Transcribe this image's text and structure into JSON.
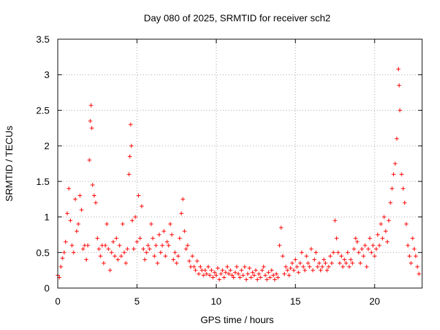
{
  "chart_data": {
    "type": "scatter",
    "title": "Day 080 of 2025, SRMTID for receiver sch2",
    "xlabel": "GPS time / hours",
    "ylabel": "SRMTID / TECUs",
    "xlim": [
      0,
      23
    ],
    "ylim": [
      0,
      3.5
    ],
    "x_ticks": [
      0,
      5,
      10,
      15,
      20
    ],
    "x_tick_labels": [
      "0",
      "5",
      "10",
      "15",
      "20"
    ],
    "y_ticks": [
      0,
      0.5,
      1,
      1.5,
      2,
      2.5,
      3,
      3.5
    ],
    "y_tick_labels": [
      "0",
      "0.5",
      "1",
      "1.5",
      "2",
      "2.5",
      "3",
      "3.5"
    ],
    "grid": true,
    "marker": "plus",
    "marker_color": "#ff0000",
    "series": [
      {
        "name": "SRMTID",
        "x": [
          0.0,
          0.1,
          0.2,
          0.3,
          0.4,
          0.5,
          0.6,
          0.7,
          0.8,
          0.9,
          1.0,
          1.1,
          1.2,
          1.3,
          1.4,
          1.5,
          1.6,
          1.7,
          1.8,
          1.9,
          2.0,
          2.05,
          2.1,
          2.15,
          2.2,
          2.3,
          2.4,
          2.5,
          2.6,
          2.7,
          2.8,
          2.9,
          3.0,
          3.1,
          3.2,
          3.3,
          3.4,
          3.5,
          3.6,
          3.7,
          3.8,
          3.9,
          4.0,
          4.1,
          4.2,
          4.3,
          4.4,
          4.5,
          4.55,
          4.6,
          4.65,
          4.7,
          4.8,
          4.9,
          5.0,
          5.1,
          5.2,
          5.3,
          5.4,
          5.5,
          5.6,
          5.7,
          5.8,
          5.9,
          6.0,
          6.1,
          6.2,
          6.3,
          6.4,
          6.5,
          6.6,
          6.7,
          6.8,
          6.9,
          7.0,
          7.1,
          7.2,
          7.3,
          7.4,
          7.5,
          7.6,
          7.7,
          7.8,
          7.9,
          8.0,
          8.1,
          8.2,
          8.3,
          8.4,
          8.5,
          8.6,
          8.7,
          8.8,
          8.9,
          9.0,
          9.1,
          9.2,
          9.3,
          9.4,
          9.5,
          9.6,
          9.7,
          9.8,
          9.9,
          10.0,
          10.1,
          10.2,
          10.3,
          10.4,
          10.5,
          10.6,
          10.7,
          10.8,
          10.9,
          11.0,
          11.1,
          11.2,
          11.3,
          11.4,
          11.5,
          11.6,
          11.7,
          11.8,
          11.9,
          12.0,
          12.1,
          12.2,
          12.3,
          12.4,
          12.5,
          12.6,
          12.7,
          12.8,
          12.9,
          13.0,
          13.1,
          13.2,
          13.3,
          13.4,
          13.5,
          13.6,
          13.7,
          13.8,
          13.9,
          14.0,
          14.1,
          14.2,
          14.3,
          14.4,
          14.5,
          14.6,
          14.7,
          14.8,
          14.9,
          15.0,
          15.1,
          15.2,
          15.3,
          15.4,
          15.5,
          15.6,
          15.7,
          15.8,
          15.9,
          16.0,
          16.1,
          16.2,
          16.3,
          16.4,
          16.5,
          16.6,
          16.7,
          16.8,
          16.9,
          17.0,
          17.1,
          17.2,
          17.3,
          17.4,
          17.5,
          17.6,
          17.7,
          17.8,
          17.9,
          18.0,
          18.1,
          18.2,
          18.3,
          18.4,
          18.5,
          18.6,
          18.7,
          18.8,
          18.9,
          19.0,
          19.1,
          19.2,
          19.3,
          19.4,
          19.5,
          19.6,
          19.7,
          19.8,
          19.9,
          20.0,
          20.1,
          20.2,
          20.3,
          20.4,
          20.5,
          20.6,
          20.7,
          20.8,
          20.9,
          21.0,
          21.1,
          21.2,
          21.3,
          21.4,
          21.5,
          21.55,
          21.6,
          21.7,
          21.8,
          21.9,
          22.0,
          22.1,
          22.2,
          22.3,
          22.4,
          22.5,
          22.6,
          22.7,
          22.8
        ],
        "y": [
          0.18,
          0.15,
          0.3,
          0.42,
          0.5,
          0.65,
          1.05,
          1.4,
          0.95,
          0.6,
          0.5,
          1.25,
          0.8,
          0.9,
          1.3,
          1.1,
          0.55,
          0.6,
          0.4,
          0.6,
          1.8,
          2.35,
          2.57,
          2.25,
          1.45,
          1.3,
          1.2,
          0.7,
          0.55,
          0.45,
          0.6,
          0.35,
          0.6,
          0.9,
          0.55,
          0.25,
          0.5,
          0.65,
          0.45,
          0.7,
          0.4,
          0.6,
          0.45,
          0.9,
          0.5,
          0.35,
          0.55,
          1.6,
          1.85,
          2.3,
          2.0,
          0.95,
          0.55,
          1.0,
          0.65,
          1.3,
          0.7,
          1.15,
          0.55,
          0.4,
          0.5,
          0.6,
          0.55,
          0.9,
          0.7,
          0.45,
          0.6,
          0.35,
          0.75,
          0.5,
          0.6,
          0.8,
          0.45,
          0.65,
          0.6,
          0.9,
          0.75,
          0.4,
          0.5,
          0.35,
          0.45,
          0.7,
          1.05,
          1.25,
          0.8,
          0.55,
          0.6,
          0.38,
          0.3,
          0.45,
          0.3,
          0.25,
          0.38,
          0.2,
          0.3,
          0.25,
          0.18,
          0.25,
          0.2,
          0.3,
          0.18,
          0.25,
          0.15,
          0.22,
          0.18,
          0.28,
          0.12,
          0.2,
          0.25,
          0.15,
          0.22,
          0.3,
          0.2,
          0.25,
          0.18,
          0.15,
          0.22,
          0.3,
          0.2,
          0.15,
          0.25,
          0.18,
          0.3,
          0.12,
          0.2,
          0.28,
          0.15,
          0.22,
          0.18,
          0.25,
          0.12,
          0.2,
          0.15,
          0.25,
          0.3,
          0.18,
          0.12,
          0.22,
          0.15,
          0.25,
          0.18,
          0.12,
          0.2,
          0.15,
          0.6,
          0.85,
          0.45,
          0.2,
          0.3,
          0.25,
          0.18,
          0.28,
          0.35,
          0.25,
          0.4,
          0.3,
          0.22,
          0.35,
          0.5,
          0.3,
          0.25,
          0.45,
          0.35,
          0.3,
          0.55,
          0.25,
          0.4,
          0.5,
          0.3,
          0.35,
          0.25,
          0.3,
          0.4,
          0.35,
          0.25,
          0.3,
          0.45,
          0.35,
          0.5,
          0.95,
          0.7,
          0.5,
          0.35,
          0.45,
          0.3,
          0.4,
          0.35,
          0.5,
          0.3,
          0.4,
          0.35,
          0.55,
          0.7,
          0.65,
          0.5,
          0.35,
          0.55,
          0.45,
          0.6,
          0.3,
          0.55,
          0.7,
          0.5,
          0.6,
          0.45,
          0.55,
          0.75,
          0.6,
          0.9,
          0.7,
          1.0,
          0.8,
          0.65,
          0.95,
          1.2,
          1.4,
          1.6,
          1.75,
          2.1,
          3.08,
          2.85,
          2.5,
          1.6,
          1.4,
          1.2,
          0.9,
          0.6,
          0.45,
          0.35,
          0.7,
          0.55,
          0.45,
          0.3,
          0.2
        ]
      }
    ]
  }
}
